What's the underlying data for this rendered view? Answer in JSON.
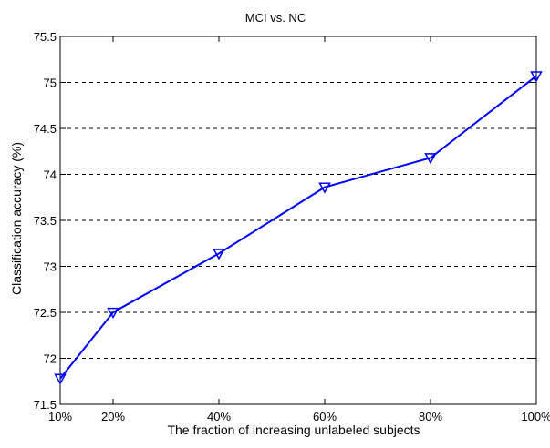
{
  "chart_data": {
    "type": "line",
    "title": "MCI vs. NC",
    "xlabel": "The fraction of increasing unlabeled subjects",
    "ylabel": "Classification accuracy (%)",
    "x_categories": [
      "10%",
      "20%",
      "40%",
      "60%",
      "80%",
      "100%"
    ],
    "x_values": [
      10,
      20,
      40,
      60,
      80,
      100
    ],
    "xlim": [
      10,
      100
    ],
    "ylim": [
      71.5,
      75.5
    ],
    "yticks": [
      71.5,
      72,
      72.5,
      73,
      73.5,
      74,
      74.5,
      75,
      75.5
    ],
    "ytick_labels": [
      "71.5",
      "72",
      "72.5",
      "73",
      "73.5",
      "74",
      "74.5",
      "75",
      "75.5"
    ],
    "grid": "horizontal-dashed",
    "series": [
      {
        "values": [
          71.78,
          72.5,
          73.14,
          73.86,
          74.18,
          75.07
        ],
        "color": "#0000ff",
        "marker": "triangle-down"
      }
    ]
  }
}
